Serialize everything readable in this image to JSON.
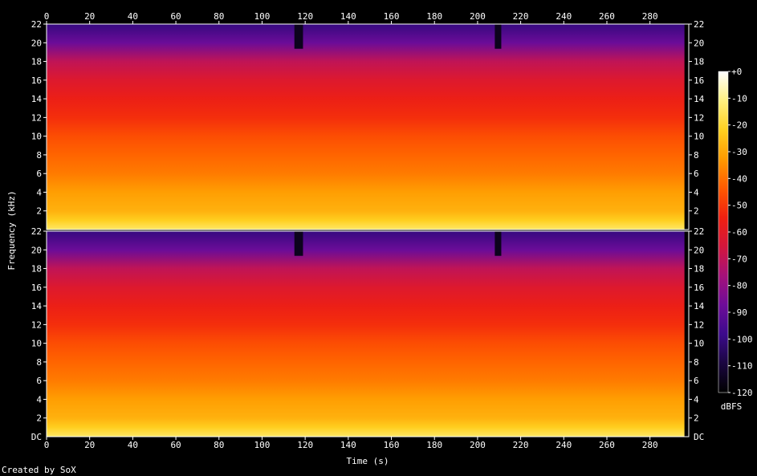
{
  "chart_data": {
    "type": "heatmap",
    "xlabel": "Time (s)",
    "ylabel": "Frequency (kHz)",
    "xlim": [
      0,
      298
    ],
    "ylim": [
      0,
      22
    ],
    "x_ticks": [
      0,
      20,
      40,
      60,
      80,
      100,
      120,
      140,
      160,
      180,
      200,
      220,
      240,
      260,
      280
    ],
    "y_ticks": [
      2,
      4,
      6,
      8,
      10,
      12,
      14,
      16,
      18,
      20,
      22
    ],
    "y_zero_label": "DC",
    "channels": 2,
    "signal_end_s": 296,
    "colorbar": {
      "unit": "dBFS",
      "range": [
        -120,
        0
      ],
      "ticks": [
        "+0",
        "-10",
        "-20",
        "-30",
        "-40",
        "-50",
        "-60",
        "-70",
        "-80",
        "-90",
        "-100",
        "-110",
        "-120"
      ],
      "colors": [
        "#000000",
        "#1a0640",
        "#3c0a8c",
        "#6e0c99",
        "#a5117a",
        "#d4163c",
        "#f02010",
        "#ff5a00",
        "#ff9a00",
        "#ffd020",
        "#fff080",
        "#ffffff"
      ]
    },
    "quiet_segments_s": [
      [
        115,
        119
      ],
      [
        208,
        211
      ]
    ],
    "level_profile_db": {
      "freq_khz": [
        0,
        1,
        2,
        4,
        6,
        8,
        10,
        12,
        14,
        16,
        18,
        20,
        22
      ],
      "dbfs": [
        -14,
        -22,
        -28,
        -32,
        -38,
        -42,
        -46,
        -52,
        -56,
        -62,
        -70,
        -88,
        -100
      ]
    }
  },
  "footer": {
    "credit": "Created by SoX"
  }
}
